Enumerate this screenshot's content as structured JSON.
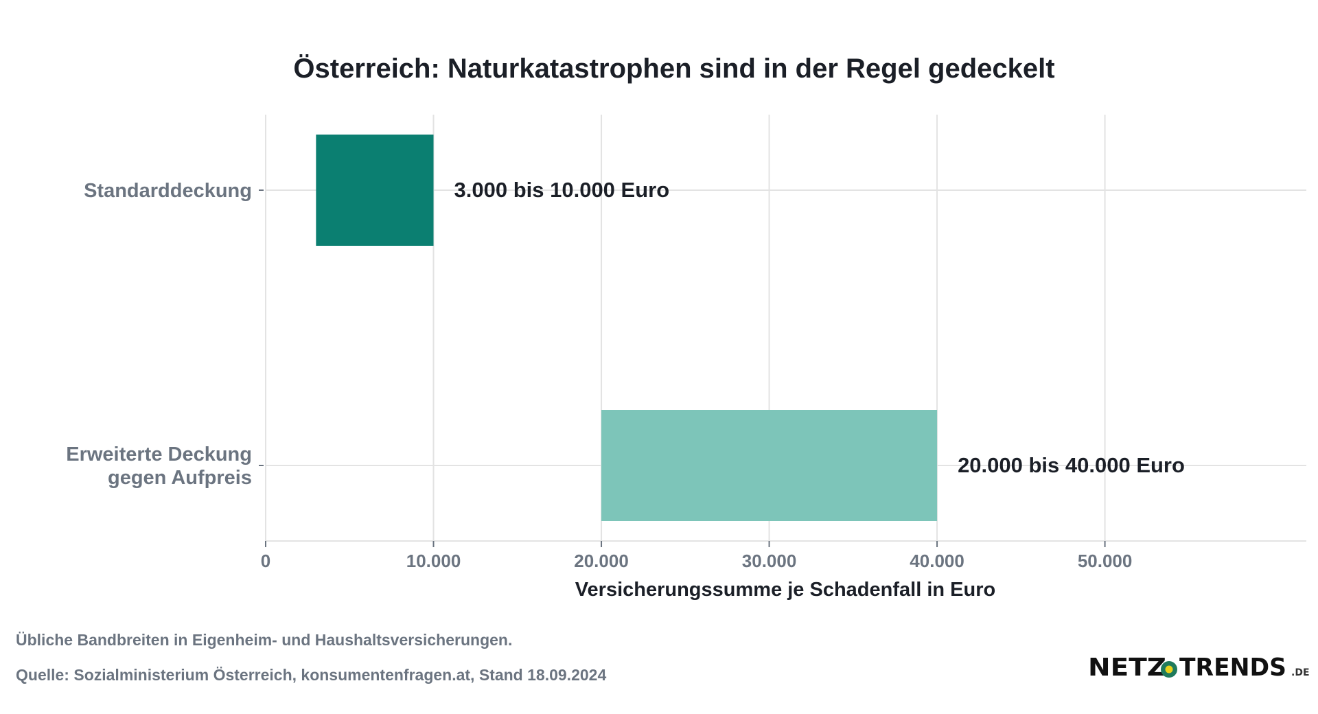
{
  "chart_data": {
    "type": "bar",
    "orientation": "horizontal",
    "title": "Österreich: Naturkatastrophen sind in der Regel gedeckelt",
    "xlabel": "Versicherungssumme je Schadenfall in Euro",
    "ylabel": "",
    "xlim": [
      0,
      62000
    ],
    "xticks": [
      0,
      10000,
      20000,
      30000,
      40000,
      50000
    ],
    "xtick_labels": [
      "0",
      "10.000",
      "20.000",
      "30.000",
      "40.000",
      "50.000"
    ],
    "grid": true,
    "categories": [
      [
        "Standarddeckung"
      ],
      [
        "Erweiterte Deckung",
        "gegen Aufpreis"
      ]
    ],
    "ranges": [
      {
        "start": 3000,
        "end": 10000,
        "color": "#0b7f71",
        "label": "3.000 bis 10.000 Euro"
      },
      {
        "start": 20000,
        "end": 40000,
        "color": "#7dc5b9",
        "label": "20.000 bis 40.000 Euro"
      }
    ]
  },
  "footer": {
    "note": "Übliche Bandbreiten in Eigenheim- und Haushaltsversicherungen.",
    "source": "Quelle: Sozialministerium Österreich, konsumentenfragen.at, Stand 18.09.2024"
  },
  "logo": {
    "left": "NETZ",
    "right": "TRENDS",
    "suffix": ".DE",
    "dot_outer_color": "#1f7a5c",
    "dot_inner_color": "#e9d21b"
  },
  "colors": {
    "grid": "#e3e3e3",
    "tick_text": "#6b7480",
    "title": "#1b1f27"
  }
}
